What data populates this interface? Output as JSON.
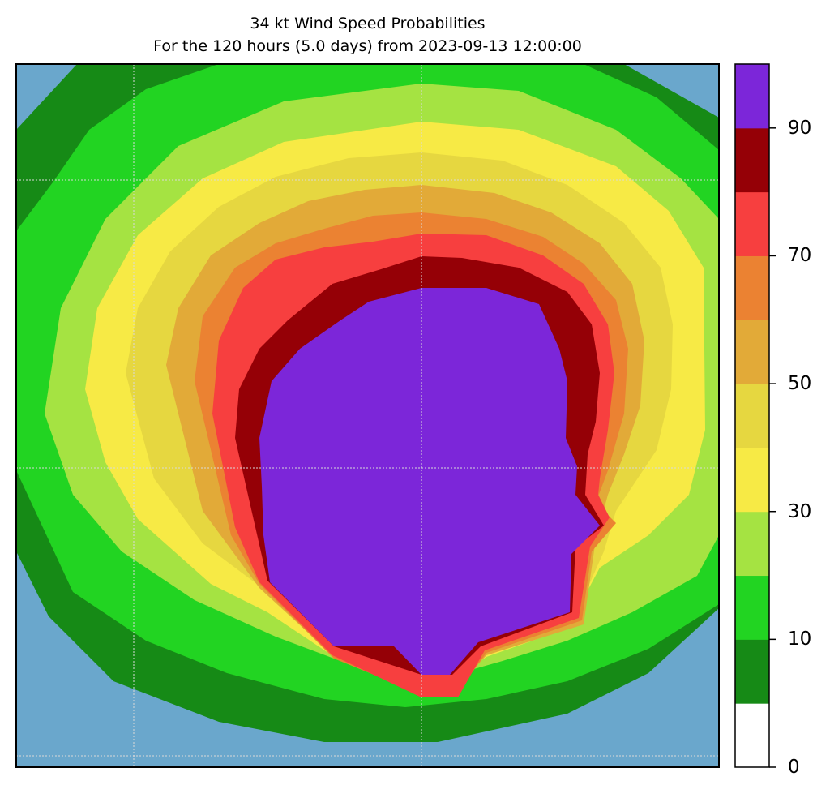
{
  "chart_data": {
    "type": "heatmap",
    "title": "34 kt Wind Speed Probabilities",
    "subtitle": "For the 120 hours (5.0 days) from 2023-09-13 12:00:00",
    "xlabel": "",
    "ylabel": "",
    "grid": true,
    "background_color": "#6aa7cc",
    "colorbar": {
      "levels": [
        0,
        5,
        10,
        20,
        30,
        40,
        50,
        60,
        70,
        80,
        90,
        100
      ],
      "colors": [
        "#ffffff",
        "#168a16",
        "#22d422",
        "#a5e342",
        "#f7ea45",
        "#e6d740",
        "#e2aa38",
        "#eb8232",
        "#f73f3f",
        "#950006",
        "#7c26d9"
      ],
      "tick_labels": [
        "0",
        "10",
        "30",
        "50",
        "70",
        "90"
      ],
      "tick_values": [
        0,
        10,
        30,
        50,
        70,
        90
      ],
      "range": [
        0,
        100
      ]
    },
    "contour_bands": [
      {
        "min": 5,
        "max": 10,
        "color": "#168a16"
      },
      {
        "min": 10,
        "max": 20,
        "color": "#22d422"
      },
      {
        "min": 20,
        "max": 30,
        "color": "#a5e342"
      },
      {
        "min": 30,
        "max": 40,
        "color": "#f7ea45"
      },
      {
        "min": 40,
        "max": 50,
        "color": "#e6d740"
      },
      {
        "min": 50,
        "max": 60,
        "color": "#e2aa38"
      },
      {
        "min": 60,
        "max": 70,
        "color": "#eb8232"
      },
      {
        "min": 70,
        "max": 80,
        "color": "#f73f3f"
      },
      {
        "min": 80,
        "max": 90,
        "color": "#950006"
      },
      {
        "min": 90,
        "max": 100,
        "color": "#7c26d9"
      }
    ]
  }
}
